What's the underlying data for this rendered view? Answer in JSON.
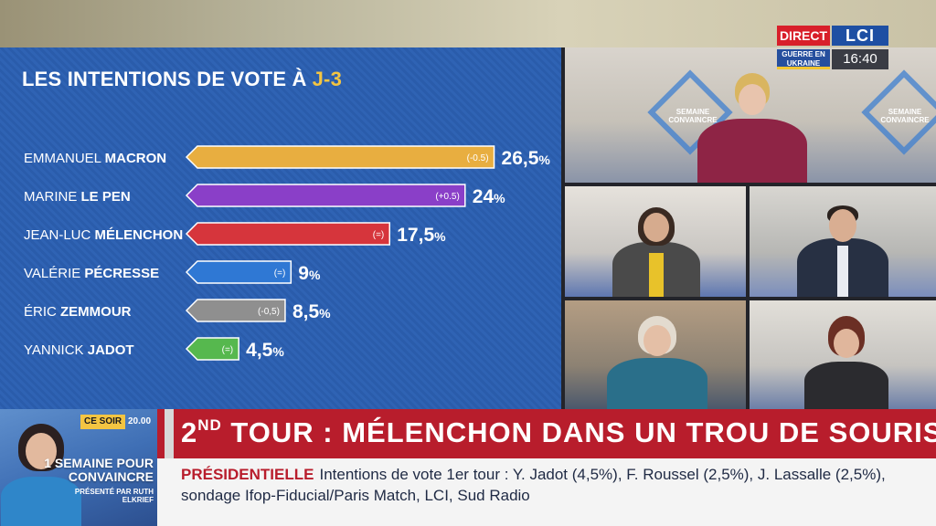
{
  "chart_data": {
    "type": "bar",
    "title": "LES INTENTIONS DE VOTE À",
    "title_accent": "J-3",
    "xlim": [
      0,
      30
    ],
    "unit": "%",
    "candidates": [
      {
        "first": "EMMANUEL",
        "last": "MACRON",
        "value": 26.5,
        "display": "26,5",
        "delta": "(-0.5)",
        "color": "#e8ae40"
      },
      {
        "first": "MARINE",
        "last": "LE PEN",
        "value": 24,
        "display": "24",
        "delta": "(+0.5)",
        "color": "#8a3fc8"
      },
      {
        "first": "JEAN-LUC",
        "last": "MÉLENCHON",
        "value": 17.5,
        "display": "17,5",
        "delta": "(=)",
        "color": "#d6353c"
      },
      {
        "first": "VALÉRIE",
        "last": "PÉCRESSE",
        "value": 9,
        "display": "9",
        "delta": "(=)",
        "color": "#2f78d4"
      },
      {
        "first": "ÉRIC",
        "last": "ZEMMOUR",
        "value": 8.5,
        "display": "8,5",
        "delta": "(-0,5)",
        "color": "#8f8f8f"
      },
      {
        "first": "YANNICK",
        "last": "JADOT",
        "value": 4.5,
        "display": "4,5",
        "delta": "(=)",
        "color": "#56b84e"
      }
    ]
  },
  "logo": {
    "direct": "DIRECT",
    "channel": "LCI",
    "guerre_line1": "GUERRE EN",
    "guerre_line2": "UKRAINE",
    "time": "16:40"
  },
  "set": {
    "screen_line1": "SEMAINE",
    "screen_line2": "CONVAINCRE"
  },
  "promo": {
    "tag": "CE SOIR",
    "time": "20.00",
    "title": "1 SEMAINE POUR CONVAINCRE",
    "sub": "PRÉSENTÉ PAR RUTH ELKRIEF"
  },
  "headline": {
    "prefix": "2",
    "sup": "ND",
    "text": " TOUR : MÉLENCHON DANS UN TROU DE SOURIS ?"
  },
  "ticker": {
    "keyword": "PRÉSIDENTIELLE",
    "text": "Intentions de vote 1er tour : Y. Jadot (4,5%), F. Roussel (2,5%), J. Lassalle (2,5%), sondage Ifop-Fiducial/Paris Match, LCI, Sud Radio"
  }
}
